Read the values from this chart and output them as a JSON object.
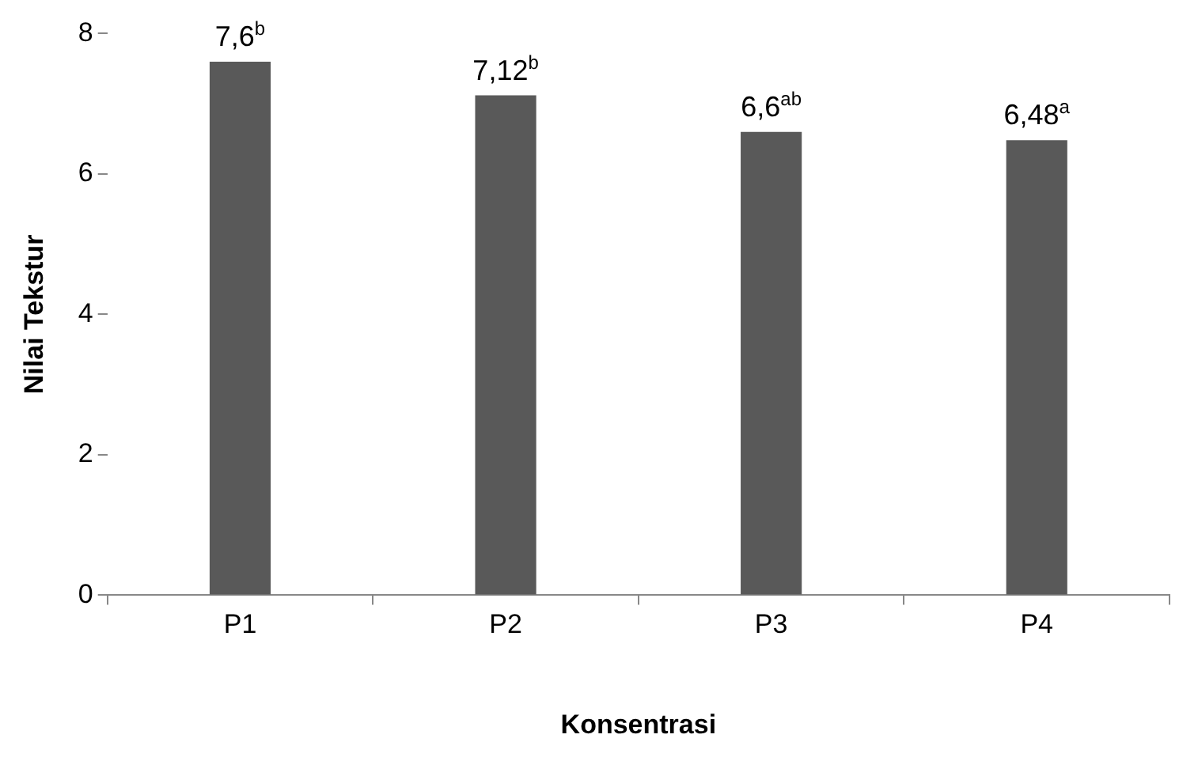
{
  "chart_data": {
    "type": "bar",
    "xlabel": "Konsentrasi",
    "ylabel": "Nilai Tekstur",
    "categories": [
      "P1",
      "P2",
      "P3",
      "P4"
    ],
    "values": [
      7.6,
      7.12,
      6.6,
      6.48
    ],
    "value_labels": [
      "7,6$^{b}$",
      "7,12$^{b}$",
      "6,6$^{ab}$",
      "6,48$^{a}$"
    ],
    "color": "#595959",
    "ylim": [
      0,
      8
    ],
    "yticks": [
      0,
      2,
      4,
      6,
      8
    ],
    "grid": false
  }
}
